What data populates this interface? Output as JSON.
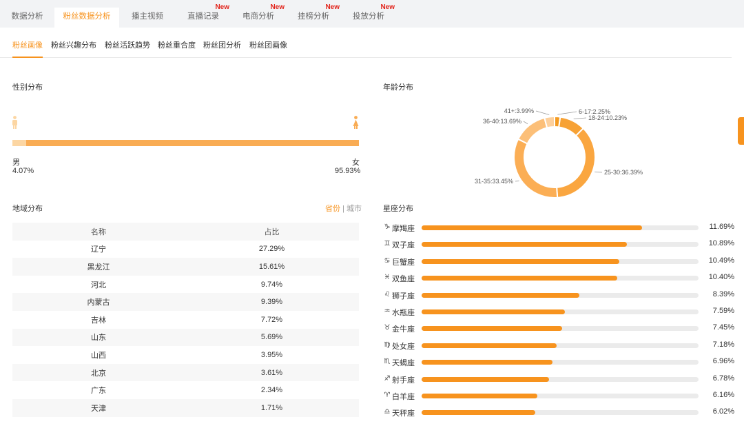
{
  "top_tabs": [
    {
      "label": "数据分析",
      "badge": ""
    },
    {
      "label": "粉丝数据分析",
      "badge": ""
    },
    {
      "label": "播主视频",
      "badge": ""
    },
    {
      "label": "直播记录",
      "badge": "New"
    },
    {
      "label": "电商分析",
      "badge": "New"
    },
    {
      "label": "挂榜分析",
      "badge": "New"
    },
    {
      "label": "投放分析",
      "badge": "New"
    }
  ],
  "active_top_tab": "粉丝数据分析",
  "sub_tabs": [
    "粉丝画像",
    "粉丝兴趣分布",
    "粉丝活跃趋势",
    "粉丝重合度",
    "粉丝团分析",
    "粉丝团画像"
  ],
  "active_sub_tab": "粉丝画像",
  "gender": {
    "title": "性别分布",
    "male_label": "男",
    "male_value": "4.07%",
    "male_fraction": 0.0407,
    "female_label": "女",
    "female_value": "95.93%",
    "female_fraction": 0.9593
  },
  "age": {
    "title": "年龄分布",
    "chart_data": {
      "type": "pie",
      "donut": true,
      "title": "年龄分布",
      "slices": [
        {
          "label": "6-17:2.25%",
          "value": 2.25,
          "color": "#f49b22"
        },
        {
          "label": "18-24:10.23%",
          "value": 10.23,
          "color": "#f7a235"
        },
        {
          "label": "25-30:36.39%",
          "value": 36.39,
          "color": "#faa640"
        },
        {
          "label": "31-35:33.45%",
          "value": 33.45,
          "color": "#fbae55"
        },
        {
          "label": "36-40:13.69%",
          "value": 13.69,
          "color": "#fcbf78"
        },
        {
          "label": "41+:3.99%",
          "value": 3.99,
          "color": "#fdd09c"
        }
      ]
    }
  },
  "region": {
    "title": "地域分布",
    "toggle": {
      "province": "省份",
      "separator": "|",
      "city": "城市"
    },
    "headers": [
      "名称",
      "占比"
    ],
    "rows": [
      [
        "辽宁",
        "27.29%"
      ],
      [
        "黑龙江",
        "15.61%"
      ],
      [
        "河北",
        "9.74%"
      ],
      [
        "内蒙古",
        "9.39%"
      ],
      [
        "吉林",
        "7.72%"
      ],
      [
        "山东",
        "5.69%"
      ],
      [
        "山西",
        "3.95%"
      ],
      [
        "北京",
        "3.61%"
      ],
      [
        "广东",
        "2.34%"
      ],
      [
        "天津",
        "1.71%"
      ]
    ]
  },
  "constellation": {
    "title": "星座分布",
    "items": [
      {
        "icon": "capricorn-icon",
        "glyph": "♑",
        "name": "摩羯座",
        "percent": 11.69,
        "value": "11.69%"
      },
      {
        "icon": "gemini-icon",
        "glyph": "♊",
        "name": "双子座",
        "percent": 10.89,
        "value": "10.89%"
      },
      {
        "icon": "cancer-icon",
        "glyph": "♋",
        "name": "巨蟹座",
        "percent": 10.49,
        "value": "10.49%"
      },
      {
        "icon": "pisces-icon",
        "glyph": "♓",
        "name": "双鱼座",
        "percent": 10.4,
        "value": "10.40%"
      },
      {
        "icon": "leo-icon",
        "glyph": "♌",
        "name": "狮子座",
        "percent": 8.39,
        "value": "8.39%"
      },
      {
        "icon": "aquarius-icon",
        "glyph": "♒",
        "name": "水瓶座",
        "percent": 7.59,
        "value": "7.59%"
      },
      {
        "icon": "taurus-icon",
        "glyph": "♉",
        "name": "金牛座",
        "percent": 7.45,
        "value": "7.45%"
      },
      {
        "icon": "virgo-icon",
        "glyph": "♍",
        "name": "处女座",
        "percent": 7.18,
        "value": "7.18%"
      },
      {
        "icon": "scorpio-icon",
        "glyph": "♏",
        "name": "天蝎座",
        "percent": 6.96,
        "value": "6.96%"
      },
      {
        "icon": "sagittarius-icon",
        "glyph": "♐",
        "name": "射手座",
        "percent": 6.78,
        "value": "6.78%"
      },
      {
        "icon": "aries-icon",
        "glyph": "♈",
        "name": "白羊座",
        "percent": 6.16,
        "value": "6.16%"
      },
      {
        "icon": "libra-icon",
        "glyph": "♎",
        "name": "天秤座",
        "percent": 6.02,
        "value": "6.02%"
      }
    ],
    "bar_max_percent": 14.7
  },
  "colors": {
    "accent": "#f7931e",
    "new_badge": "#e2231a"
  }
}
